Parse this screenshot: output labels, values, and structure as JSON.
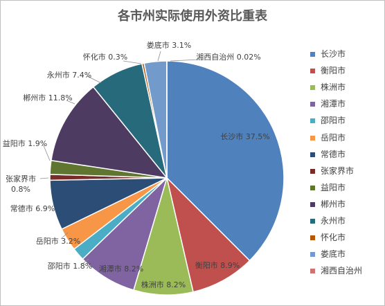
{
  "chart_data": {
    "type": "pie",
    "title": "各市州实际使用外资比重表",
    "categories": [
      "长沙市",
      "衡阳市",
      "株洲市",
      "湘潭市",
      "邵阳市",
      "岳阳市",
      "常德市",
      "张家界市",
      "益阳市",
      "郴州市",
      "永州市",
      "怀化市",
      "娄底市",
      "湘西自治州"
    ],
    "values": [
      37.5,
      8.9,
      8.2,
      8.2,
      1.8,
      3.2,
      6.9,
      0.8,
      1.9,
      11.8,
      7.4,
      0.3,
      3.1,
      0.02
    ],
    "data_labels": [
      "长沙市 37.5%",
      "衡阳市 8.9%",
      "株洲市 8.2%",
      "湘潭市 8.2%",
      "邵阳市 1.8%",
      "岳阳市 3.2%",
      "常德市 6.9%",
      "张家界市\n0.8%",
      "益阳市 1.9%",
      "郴州市 11.8%",
      "永州市 7.4%",
      "怀化市 0.3%",
      "娄底市 3.1%",
      "湘西自治州 0.02%"
    ],
    "colors": [
      "#4F81BD",
      "#C0504D",
      "#9BBB59",
      "#8064A2",
      "#4BACC6",
      "#F79646",
      "#2C4D75",
      "#772C2A",
      "#5F7530",
      "#4D3B62",
      "#276A7C",
      "#B65708",
      "#729ACA",
      "#CD7371"
    ],
    "legend": "right"
  }
}
